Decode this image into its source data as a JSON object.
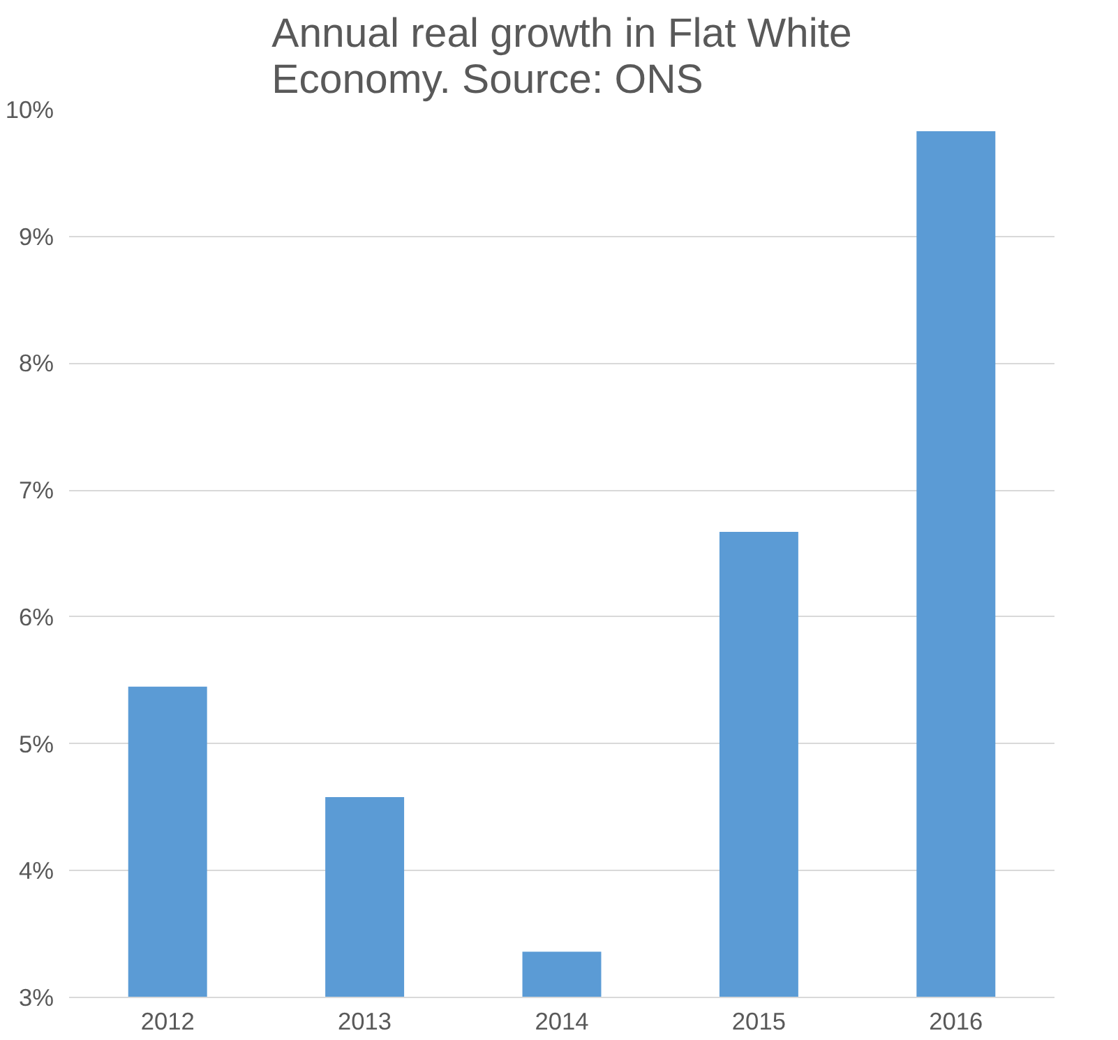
{
  "chart_data": {
    "type": "bar",
    "title": "Annual real growth in Flat White Economy. Source: ONS",
    "categories": [
      "2012",
      "2013",
      "2014",
      "2015",
      "2016"
    ],
    "values": [
      5.45,
      4.58,
      3.36,
      6.67,
      9.83
    ],
    "color": "#5b9bd5",
    "ylim": [
      3,
      10
    ],
    "yticks": [
      {
        "value": 3,
        "label": "3%"
      },
      {
        "value": 4,
        "label": "4%"
      },
      {
        "value": 5,
        "label": "5%"
      },
      {
        "value": 6,
        "label": "6%"
      },
      {
        "value": 7,
        "label": "7%"
      },
      {
        "value": 8,
        "label": "8%"
      },
      {
        "value": 9,
        "label": "9%"
      },
      {
        "value": 10,
        "label": "10%"
      }
    ],
    "grid": "y"
  }
}
